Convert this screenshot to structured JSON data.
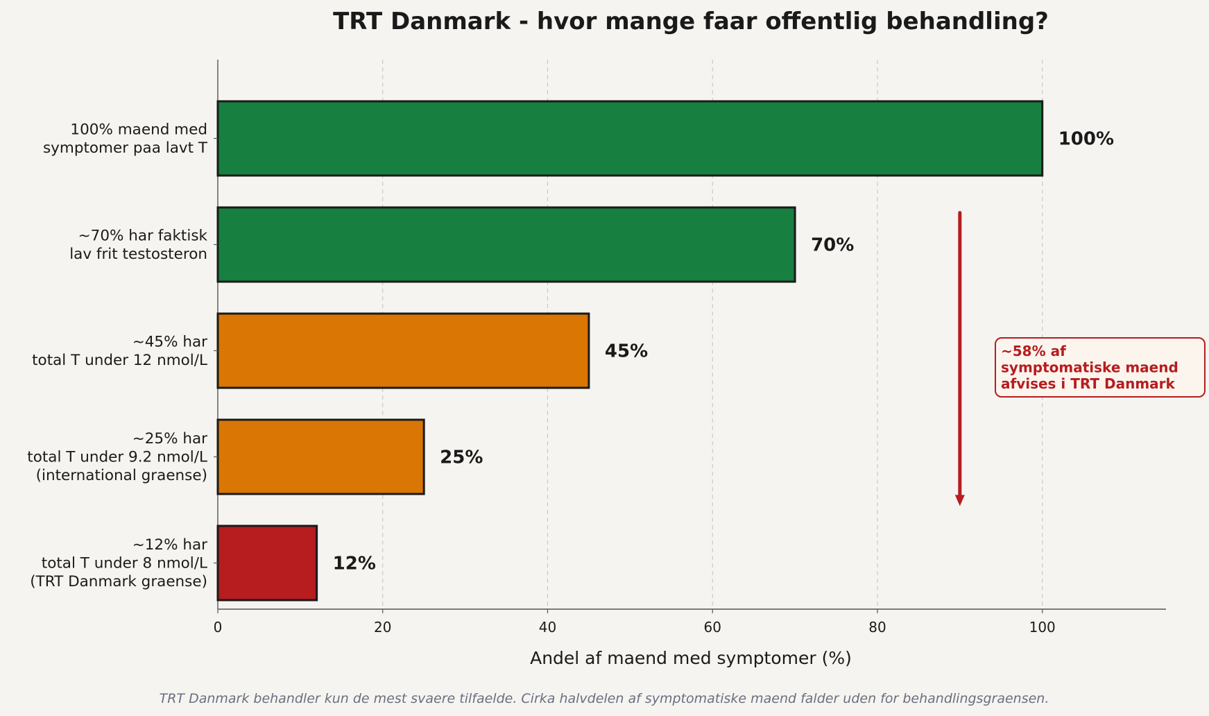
{
  "chart_data": {
    "type": "bar",
    "orientation": "horizontal",
    "title": "TRT Danmark - hvor mange faar offentlig behandling?",
    "xlabel": "Andel af maend med symptomer (%)",
    "ylabel": "",
    "xlim": [
      0,
      115
    ],
    "x_ticks": [
      0,
      20,
      40,
      60,
      80,
      100
    ],
    "grid": "vertical dashed",
    "categories": [
      [
        "100% maend med",
        "symptomer paa lavt T"
      ],
      [
        "~70% har faktisk",
        "lav frit testosteron"
      ],
      [
        "~45% har",
        "total T under 12 nmol/L"
      ],
      [
        "~25% har",
        "total T under 9.2 nmol/L",
        "(international graense)"
      ],
      [
        "~12% har",
        "total T under 8 nmol/L",
        "(TRT Danmark graense)"
      ]
    ],
    "values": [
      100,
      70,
      45,
      25,
      12
    ],
    "value_labels": [
      "100%",
      "70%",
      "45%",
      "25%",
      "12%"
    ],
    "colors": [
      "#178040",
      "#178040",
      "#d97604",
      "#d97604",
      "#b71c1e"
    ],
    "annotation": {
      "lines": [
        "~58% af",
        "symptomatiske maend",
        "afvises i TRT Danmark"
      ],
      "color": "#b71c1e",
      "arrow_x": 90,
      "arrow_from_y": 1.2,
      "arrow_to_y": 3.95
    },
    "footnote": "TRT Danmark behandler kun de mest svaere tilfaelde. Cirka halvdelen af symptomatiske maend falder uden for behandlingsgraensen."
  }
}
